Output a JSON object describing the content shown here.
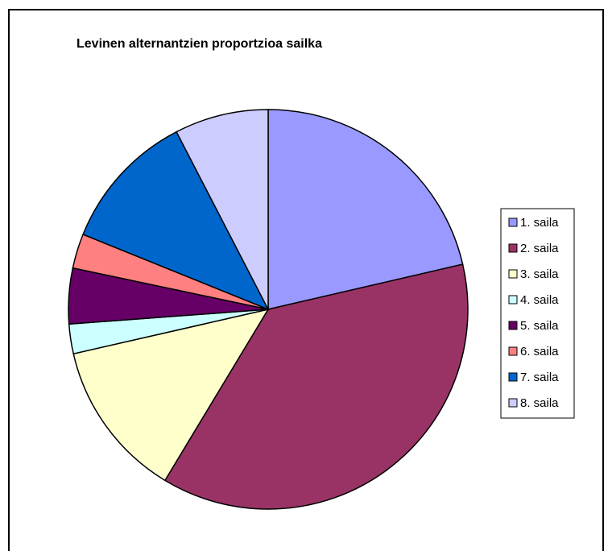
{
  "chart_data": {
    "type": "pie",
    "title": "Levinen alternantzien proportzioa sailka",
    "categories": [
      "1. saila",
      "2. saila",
      "3. saila",
      "4. saila",
      "5. saila",
      "6. saila",
      "7. saila",
      "8. saila"
    ],
    "values": [
      21.4,
      37.3,
      12.8,
      2.4,
      4.5,
      2.8,
      11.3,
      7.6
    ],
    "colors": [
      "#9999ff",
      "#993366",
      "#ffffcc",
      "#ccffff",
      "#660066",
      "#ff8080",
      "#0066cc",
      "#ccccff"
    ],
    "legend": "right"
  }
}
